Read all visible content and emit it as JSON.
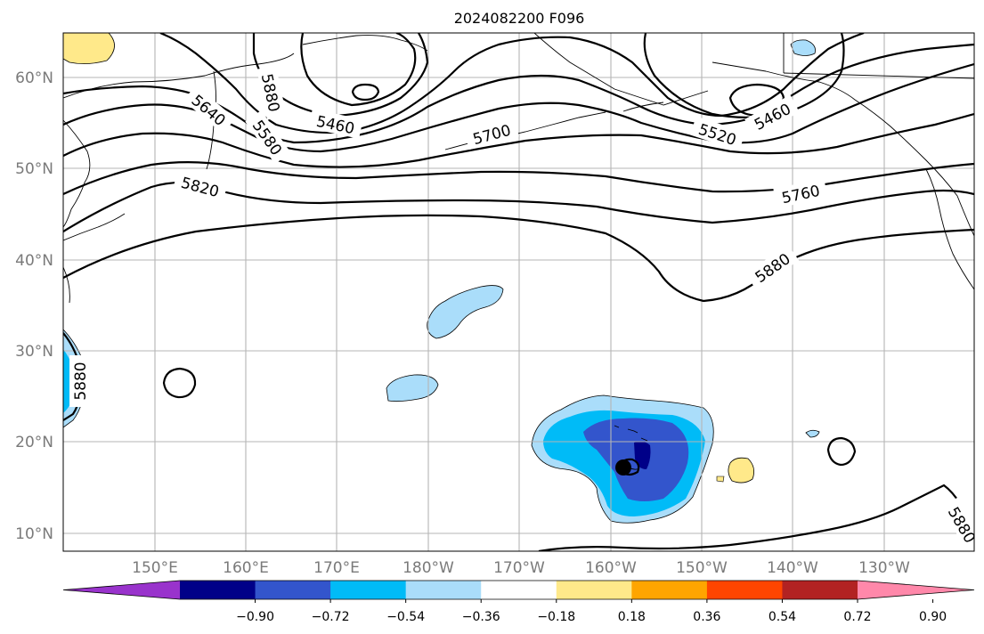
{
  "title": "2024082200 F096",
  "lat_labels": [
    "60°N",
    "50°N",
    "40°N",
    "30°N",
    "20°N",
    "10°N"
  ],
  "lon_labels": [
    "150°E",
    "160°E",
    "170°E",
    "180°W",
    "170°W",
    "160°W",
    "150°W",
    "140°W",
    "130°W"
  ],
  "contour_labels": [
    "5460",
    "5460",
    "5520",
    "5580",
    "5640",
    "5700",
    "5760",
    "5820",
    "5880",
    "5880",
    "5880",
    "5880"
  ],
  "colorbar": {
    "ticks": [
      "−0.90",
      "−0.72",
      "−0.54",
      "−0.36",
      "−0.18",
      "0.18",
      "0.36",
      "0.54",
      "0.72",
      "0.90"
    ],
    "colors": [
      "#9933cc",
      "#000088",
      "#3355cc",
      "#00bbf7",
      "#aaddfa",
      "#ffffff",
      "#ffe98a",
      "#ffa500",
      "#ff4500",
      "#b22222",
      "#ff88aa"
    ]
  },
  "shading_colors": {
    "light_blue": "#aaddfa",
    "mid_blue": "#00bbf7",
    "royal_blue": "#3355cc",
    "navy": "#000088",
    "yellow": "#ffe98a"
  }
}
